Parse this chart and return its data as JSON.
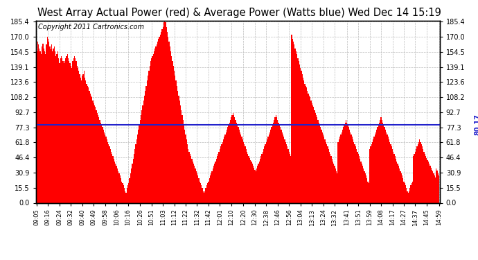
{
  "title": "West Array Actual Power (red) & Average Power (Watts blue) Wed Dec 14 15:19",
  "copyright": "Copyright 2011 Cartronics.com",
  "average_value": 80.17,
  "yticks": [
    0.0,
    15.5,
    30.9,
    46.4,
    61.8,
    77.3,
    92.7,
    108.2,
    123.6,
    139.1,
    154.5,
    170.0,
    185.4
  ],
  "ymax": 185.4,
  "ymin": 0.0,
  "bar_color": "#FF0000",
  "avg_line_color": "#2222CC",
  "background_color": "#FFFFFF",
  "plot_bg_color": "#FFFFFF",
  "grid_color": "#BBBBBB",
  "title_fontsize": 10.5,
  "copyright_fontsize": 7,
  "tick_fontsize": 7,
  "xtick_labels": [
    "09:05",
    "09:16",
    "09:24",
    "09:32",
    "09:40",
    "09:49",
    "09:58",
    "10:06",
    "10:16",
    "10:26",
    "10:51",
    "11:03",
    "11:12",
    "11:22",
    "11:32",
    "11:42",
    "12:01",
    "12:10",
    "12:20",
    "12:30",
    "12:38",
    "12:46",
    "12:56",
    "13:04",
    "13:13",
    "13:24",
    "13:32",
    "13:41",
    "13:51",
    "13:59",
    "14:08",
    "14:17",
    "14:27",
    "14:37",
    "14:45",
    "14:59"
  ],
  "power_values": [
    155,
    165,
    162,
    158,
    155,
    152,
    160,
    163,
    158,
    155,
    152,
    162,
    170,
    168,
    165,
    160,
    157,
    162,
    155,
    158,
    160,
    155,
    150,
    152,
    155,
    148,
    143,
    148,
    150,
    148,
    145,
    143,
    145,
    148,
    150,
    152,
    148,
    145,
    143,
    140,
    138,
    145,
    148,
    150,
    148,
    145,
    140,
    138,
    135,
    132,
    128,
    125,
    130,
    132,
    135,
    128,
    125,
    122,
    120,
    118,
    115,
    112,
    110,
    108,
    105,
    102,
    100,
    98,
    95,
    92,
    90,
    88,
    85,
    82,
    80,
    78,
    75,
    72,
    70,
    68,
    65,
    62,
    60,
    58,
    55,
    52,
    50,
    48,
    45,
    42,
    40,
    38,
    35,
    32,
    30,
    28,
    25,
    22,
    20,
    18,
    15,
    12,
    10,
    15,
    18,
    20,
    25,
    30,
    35,
    40,
    45,
    50,
    55,
    60,
    65,
    70,
    75,
    80,
    85,
    90,
    95,
    100,
    105,
    110,
    115,
    120,
    125,
    130,
    135,
    140,
    145,
    148,
    150,
    152,
    155,
    158,
    160,
    162,
    165,
    168,
    170,
    172,
    175,
    178,
    180,
    185,
    190,
    185,
    180,
    175,
    170,
    165,
    160,
    155,
    150,
    145,
    140,
    135,
    130,
    125,
    120,
    115,
    110,
    105,
    100,
    95,
    90,
    85,
    80,
    75,
    70,
    65,
    60,
    55,
    52,
    50,
    48,
    45,
    42,
    40,
    38,
    35,
    32,
    30,
    28,
    25,
    22,
    20,
    18,
    15,
    12,
    10,
    12,
    15,
    18,
    20,
    22,
    25,
    28,
    30,
    32,
    35,
    38,
    40,
    42,
    45,
    48,
    50,
    52,
    55,
    58,
    60,
    62,
    65,
    68,
    70,
    72,
    75,
    78,
    80,
    82,
    85,
    88,
    90,
    92,
    90,
    88,
    85,
    82,
    80,
    78,
    75,
    72,
    70,
    68,
    65,
    62,
    60,
    58,
    55,
    52,
    50,
    48,
    46,
    44,
    42,
    40,
    38,
    36,
    34,
    32,
    35,
    38,
    40,
    42,
    45,
    48,
    50,
    52,
    55,
    58,
    60,
    62,
    65,
    68,
    70,
    72,
    75,
    78,
    80,
    82,
    85,
    88,
    90,
    88,
    85,
    82,
    80,
    78,
    75,
    72,
    70,
    68,
    65,
    62,
    60,
    58,
    55,
    52,
    50,
    48,
    172,
    168,
    165,
    162,
    158,
    155,
    152,
    148,
    145,
    142,
    138,
    135,
    132,
    128,
    125,
    122,
    120,
    118,
    115,
    112,
    110,
    108,
    105,
    102,
    100,
    98,
    95,
    92,
    90,
    88,
    85,
    82,
    80,
    78,
    75,
    72,
    70,
    68,
    65,
    62,
    60,
    58,
    55,
    52,
    50,
    48,
    45,
    42,
    40,
    38,
    35,
    32,
    30,
    62,
    65,
    68,
    70,
    72,
    75,
    78,
    80,
    82,
    85,
    82,
    80,
    78,
    75,
    72,
    70,
    68,
    65,
    62,
    60,
    58,
    55,
    52,
    50,
    48,
    45,
    42,
    40,
    38,
    35,
    32,
    30,
    28,
    25,
    22,
    20,
    55,
    58,
    60,
    62,
    65,
    68,
    70,
    72,
    75,
    78,
    80,
    82,
    85,
    88,
    85,
    82,
    80,
    78,
    75,
    72,
    70,
    68,
    65,
    62,
    60,
    58,
    55,
    52,
    50,
    48,
    45,
    42,
    40,
    38,
    35,
    32,
    30,
    28,
    25,
    22,
    20,
    18,
    15,
    12,
    10,
    12,
    15,
    18,
    20,
    22,
    48,
    50,
    52,
    55,
    58,
    60,
    62,
    65,
    62,
    60,
    58,
    55,
    52,
    50,
    48,
    46,
    44,
    42,
    40,
    38,
    36,
    34,
    32,
    30,
    28,
    26,
    35,
    33,
    30,
    28
  ]
}
